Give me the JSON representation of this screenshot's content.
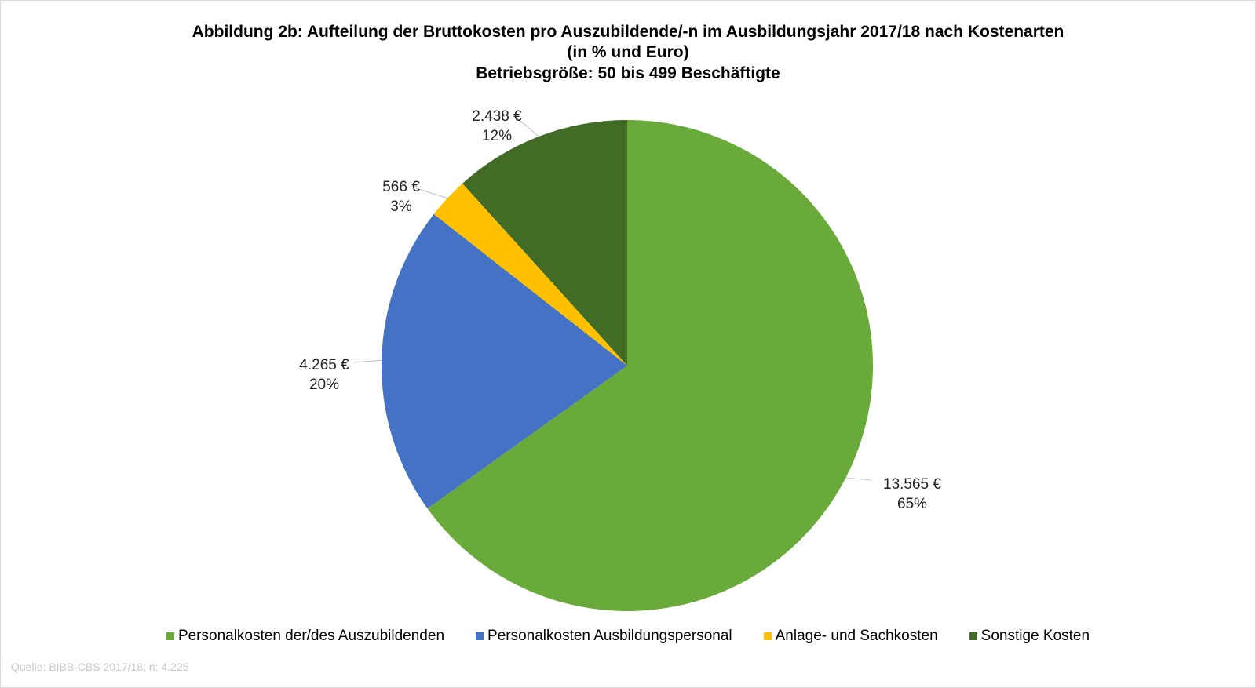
{
  "chart_data": {
    "type": "pie",
    "title": [
      "Abbildung 2b: Aufteilung der Bruttokosten pro Auszubildende/-n im Ausbildungsjahr 2017/18  nach Kostenarten",
      "(in %  und Euro)",
      "Betriebsgröße: 50 bis 499 Beschäftigte"
    ],
    "slices": [
      {
        "name": "Personalkosten der/des Auszubildenden",
        "value": 13565,
        "value_label": "13.565 €",
        "percent_label": "65%",
        "color": "#6aaa3a"
      },
      {
        "name": "Personalkosten Ausbildungspersonal",
        "value": 4265,
        "value_label": "4.265 €",
        "percent_label": "20%",
        "color": "#4472c4"
      },
      {
        "name": "Anlage- und Sachkosten",
        "value": 566,
        "value_label": "566 €",
        "percent_label": "3%",
        "color": "#ffc000"
      },
      {
        "name": "Sonstige Kosten",
        "value": 2438,
        "value_label": "2.438 €",
        "percent_label": "12%",
        "color": "#426b26"
      }
    ],
    "start_angle": "12 o'clock",
    "direction": "clockwise",
    "legend_position": "bottom",
    "source": "Quelle: BIBB-CBS 2017/18; n: 4.225"
  }
}
